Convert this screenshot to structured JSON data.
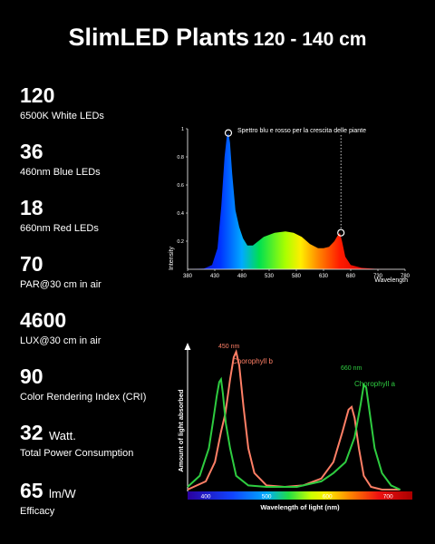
{
  "header": {
    "title": "SlimLED Plants",
    "subtitle": "120 - 140 cm"
  },
  "specs": [
    {
      "value": "120",
      "unit": "",
      "label": "6500K White LEDs"
    },
    {
      "value": "36",
      "unit": "",
      "label": "460nm Blue LEDs"
    },
    {
      "value": "18",
      "unit": "",
      "label": "660nm Red LEDs"
    },
    {
      "value": "70",
      "unit": "",
      "label": "PAR@30 cm in air"
    },
    {
      "value": "4600",
      "unit": "",
      "label": "LUX@30 cm in air"
    },
    {
      "value": "90",
      "unit": "",
      "label": "Color Rendering Index (CRI)"
    },
    {
      "value": "32",
      "unit": "Watt.",
      "label": "Total Power Consumption"
    },
    {
      "value": "65",
      "unit": "lm/W",
      "label": "Efficacy"
    }
  ],
  "chart_data": [
    {
      "type": "area",
      "title": "",
      "xlabel": "Wavelength",
      "ylabel": "Intensity",
      "xlim": [
        380,
        780
      ],
      "ylim": [
        0,
        1
      ],
      "xticks": [
        380,
        430,
        480,
        530,
        580,
        630,
        680,
        730,
        780
      ],
      "yticks": [
        0.2,
        0.4,
        0.6,
        0.8,
        1
      ],
      "annotation": "Spettro blu e rosso per la crescita delle piante",
      "markers": [
        {
          "x": 455,
          "y": 0.97
        },
        {
          "x": 662,
          "y": 0.26
        }
      ],
      "series": [
        {
          "x": [
            380,
            410,
            425,
            435,
            442,
            448,
            452,
            455,
            458,
            462,
            468,
            475,
            482,
            490,
            500,
            510,
            520,
            540,
            560,
            575,
            590,
            605,
            620,
            630,
            640,
            650,
            656,
            660,
            664,
            670,
            680,
            700,
            730,
            780
          ],
          "y": [
            0,
            0.005,
            0.03,
            0.15,
            0.45,
            0.8,
            0.94,
            0.97,
            0.9,
            0.68,
            0.42,
            0.3,
            0.22,
            0.17,
            0.17,
            0.2,
            0.23,
            0.26,
            0.27,
            0.26,
            0.23,
            0.18,
            0.15,
            0.15,
            0.16,
            0.2,
            0.24,
            0.26,
            0.2,
            0.09,
            0.03,
            0.01,
            0.002,
            0
          ]
        }
      ]
    },
    {
      "type": "line",
      "title": "",
      "xlabel": "Wavelength of light (nm)",
      "ylabel": "Amount of light absorbed",
      "xlim": [
        370,
        740
      ],
      "ylim": [
        0,
        1
      ],
      "xticks": [
        400,
        500,
        600,
        700
      ],
      "annotations": [
        {
          "text": "450 nm",
          "x": 450
        },
        {
          "text": "660 nm",
          "x": 662
        }
      ],
      "series": [
        {
          "name": "Chorophyll b",
          "color": "#ff7f66",
          "x": [
            370,
            400,
            415,
            425,
            432,
            440,
            446,
            450,
            455,
            462,
            470,
            480,
            500,
            530,
            560,
            590,
            610,
            625,
            635,
            640,
            645,
            652,
            660,
            672,
            690,
            720
          ],
          "y": [
            0,
            0.06,
            0.2,
            0.42,
            0.55,
            0.8,
            0.96,
            1,
            0.9,
            0.6,
            0.3,
            0.12,
            0.03,
            0.02,
            0.03,
            0.08,
            0.2,
            0.42,
            0.58,
            0.6,
            0.52,
            0.3,
            0.1,
            0.02,
            0,
            0
          ]
        },
        {
          "name": "Chorophyll a",
          "color": "#2ecc40",
          "x": [
            370,
            390,
            405,
            412,
            418,
            422,
            425,
            428,
            433,
            440,
            450,
            470,
            500,
            550,
            590,
            610,
            630,
            645,
            655,
            660,
            664,
            670,
            678,
            690,
            705,
            720
          ],
          "y": [
            0.02,
            0.1,
            0.3,
            0.5,
            0.68,
            0.78,
            0.8,
            0.7,
            0.48,
            0.3,
            0.1,
            0.03,
            0.02,
            0.02,
            0.06,
            0.12,
            0.2,
            0.38,
            0.62,
            0.76,
            0.74,
            0.55,
            0.3,
            0.12,
            0.03,
            0
          ]
        }
      ]
    }
  ]
}
